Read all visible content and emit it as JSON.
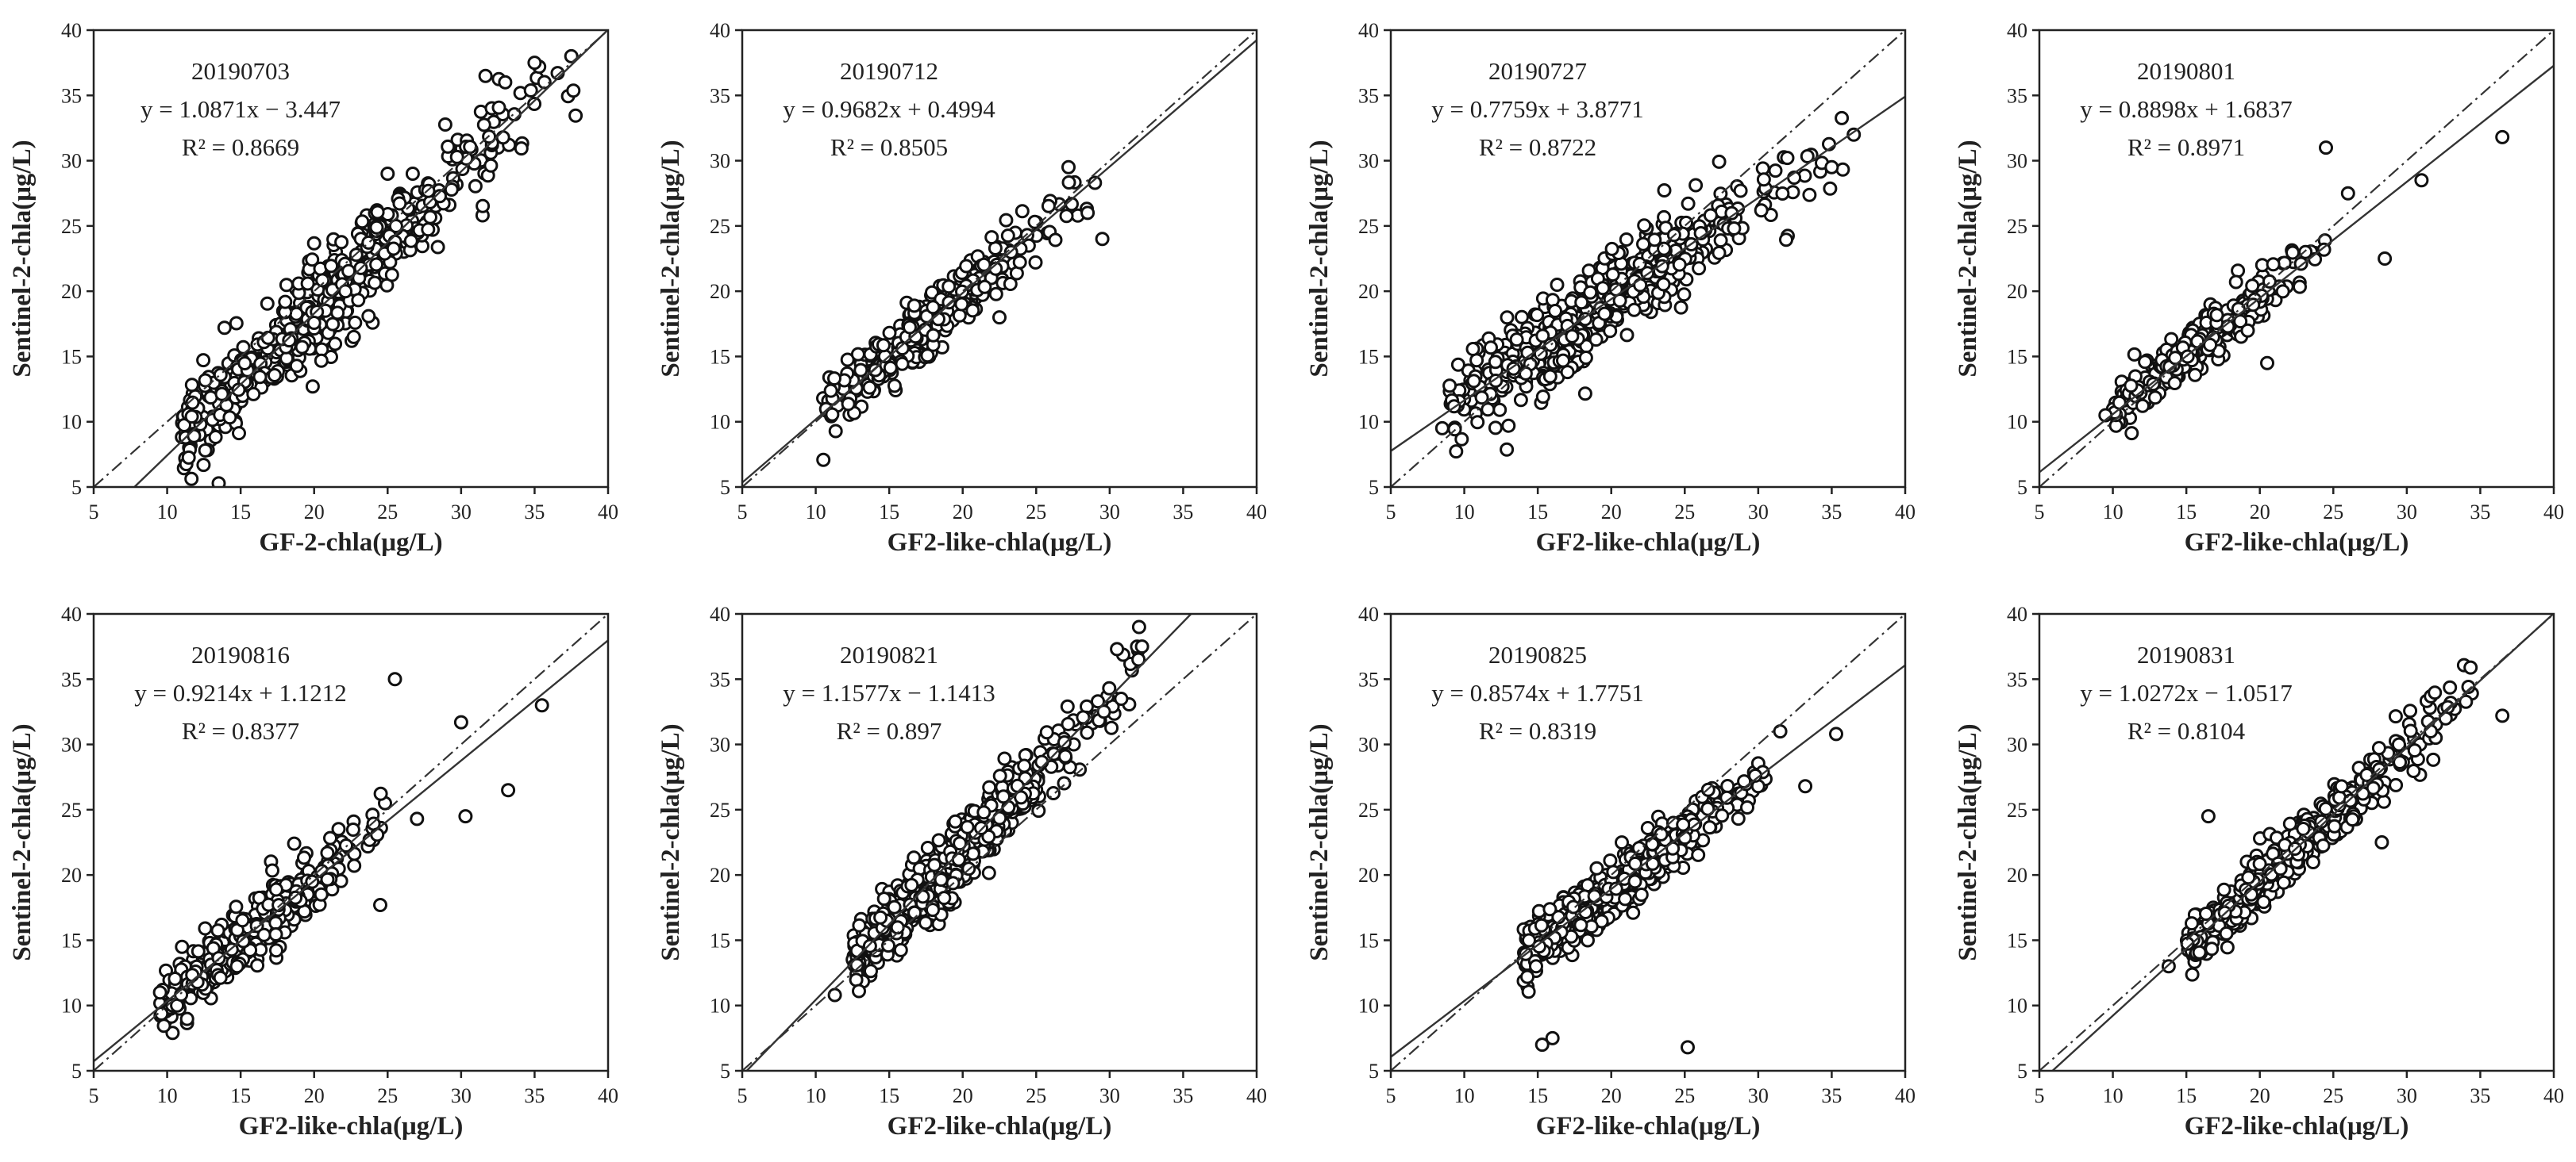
{
  "chart_data": [
    {
      "type": "scatter",
      "date_label": "20190703",
      "equation": "y = 1.0871x − 3.447",
      "r2_label": "R² = 0.8669",
      "xlabel": "GF-2-chla(μg/L)",
      "ylabel": "Sentinel-2-chla(μg/L)",
      "xlim": [
        5,
        40
      ],
      "ylim": [
        5,
        40
      ],
      "xticks": [
        "5",
        "10",
        "15",
        "20",
        "25",
        "30",
        "35",
        "40"
      ],
      "yticks": [
        "5",
        "10",
        "15",
        "20",
        "25",
        "30",
        "35",
        "40"
      ],
      "series": [
        {
          "name": "points",
          "x_range": [
            11,
            38
          ],
          "count": 520,
          "spread": 2.0,
          "outliers": [
            [
              37.5,
              38
            ],
            [
              35,
              37.5
            ],
            [
              33,
              36
            ],
            [
              25,
              29
            ]
          ]
        },
        {
          "name": "fit",
          "slope": 1.0871,
          "intercept": -3.447
        },
        {
          "name": "1:1 line",
          "slope": 1,
          "intercept": 0
        }
      ]
    },
    {
      "type": "scatter",
      "date_label": "20190712",
      "equation": "y = 0.9682x + 0.4994",
      "r2_label": "R² = 0.8505",
      "xlabel": "GF2-like-chla(μg/L)",
      "ylabel": "Sentinel-2-chla(μg/L)",
      "xlim": [
        5,
        40
      ],
      "ylim": [
        5,
        40
      ],
      "xticks": [
        "5",
        "10",
        "15",
        "20",
        "25",
        "30",
        "35",
        "40"
      ],
      "yticks": [
        "5",
        "10",
        "15",
        "20",
        "25",
        "30",
        "35",
        "40"
      ],
      "series": [
        {
          "name": "points",
          "x_range": [
            10.5,
            29
          ],
          "count": 330,
          "spread": 1.2,
          "outliers": [
            [
              29.5,
              24
            ],
            [
              22.5,
              18
            ],
            [
              27.2,
              29.5
            ],
            [
              29,
              28.3
            ],
            [
              28.5,
              26
            ]
          ]
        },
        {
          "name": "fit",
          "slope": 0.9682,
          "intercept": 0.4994
        },
        {
          "name": "1:1 line",
          "slope": 1,
          "intercept": 0
        }
      ]
    },
    {
      "type": "scatter",
      "date_label": "20190727",
      "equation": "y = 0.7759x + 3.8771",
      "r2_label": "R² = 0.8722",
      "xlabel": "GF2-like-chla(μg/L)",
      "ylabel": "Sentinel-2-chla(μg/L)",
      "xlim": [
        5,
        40
      ],
      "ylim": [
        5,
        40
      ],
      "xticks": [
        "5",
        "10",
        "15",
        "20",
        "25",
        "30",
        "35",
        "40"
      ],
      "yticks": [
        "5",
        "10",
        "15",
        "20",
        "25",
        "30",
        "35",
        "40"
      ],
      "series": [
        {
          "name": "points",
          "x_range": [
            9,
            36.5
          ],
          "count": 520,
          "spread": 1.7,
          "outliers": [
            [
              8.5,
              9.5
            ],
            [
              36.5,
              32
            ],
            [
              35,
              29.5
            ]
          ]
        },
        {
          "name": "fit",
          "slope": 0.7759,
          "intercept": 3.8771
        },
        {
          "name": "1:1 line",
          "slope": 1,
          "intercept": 0
        }
      ]
    },
    {
      "type": "scatter",
      "date_label": "20190801",
      "equation": "y = 0.8898x + 1.6837",
      "r2_label": "R² = 0.8971",
      "xlabel": "GF2-like-chla(μg/L)",
      "ylabel": "Sentinel-2-chla(μg/L)",
      "xlim": [
        5,
        40
      ],
      "ylim": [
        5,
        40
      ],
      "xticks": [
        "5",
        "10",
        "15",
        "20",
        "25",
        "30",
        "35",
        "40"
      ],
      "yticks": [
        "5",
        "10",
        "15",
        "20",
        "25",
        "30",
        "35",
        "40"
      ],
      "series": [
        {
          "name": "points",
          "x_range": [
            10,
            25
          ],
          "count": 300,
          "spread": 1.0,
          "outliers": [
            [
              36.5,
              31.8
            ],
            [
              31,
              28.5
            ],
            [
              28.5,
              22.5
            ],
            [
              26,
              27.5
            ],
            [
              24.5,
              31
            ],
            [
              20.5,
              14.5
            ],
            [
              9.5,
              10.5
            ]
          ]
        },
        {
          "name": "fit",
          "slope": 0.8898,
          "intercept": 1.6837
        },
        {
          "name": "1:1 line",
          "slope": 1,
          "intercept": 0
        }
      ]
    },
    {
      "type": "scatter",
      "date_label": "20190816",
      "equation": "y = 0.9214x + 1.1212",
      "r2_label": "R² = 0.8377",
      "xlabel": "GF2-like-chla(μg/L)",
      "ylabel": "Sentinel-2-chla(μg/L)",
      "xlim": [
        5,
        40
      ],
      "ylim": [
        5,
        40
      ],
      "xticks": [
        "5",
        "10",
        "15",
        "20",
        "25",
        "30",
        "35",
        "40"
      ],
      "yticks": [
        "5",
        "10",
        "15",
        "20",
        "25",
        "30",
        "35",
        "40"
      ],
      "series": [
        {
          "name": "points",
          "x_range": [
            9.5,
            26
          ],
          "count": 380,
          "spread": 1.3,
          "outliers": [
            [
              25.5,
              35
            ],
            [
              35.5,
              33
            ],
            [
              30,
              31.7
            ],
            [
              33.2,
              26.5
            ],
            [
              30.3,
              24.5
            ],
            [
              27,
              24.3
            ],
            [
              24.5,
              17.7
            ]
          ]
        },
        {
          "name": "fit",
          "slope": 0.9214,
          "intercept": 1.1212
        },
        {
          "name": "1:1 line",
          "slope": 1,
          "intercept": 0
        }
      ]
    },
    {
      "type": "scatter",
      "date_label": "20190821",
      "equation": "y = 1.1577x − 1.1413",
      "r2_label": "R² = 0.897",
      "xlabel": "GF2-like-chla(μg/L)",
      "ylabel": "Sentinel-2-chla(μg/L)",
      "xlim": [
        5,
        40
      ],
      "ylim": [
        5,
        40
      ],
      "xticks": [
        "5",
        "10",
        "15",
        "20",
        "25",
        "30",
        "35",
        "40"
      ],
      "yticks": [
        "5",
        "10",
        "15",
        "20",
        "25",
        "30",
        "35",
        "40"
      ],
      "series": [
        {
          "name": "points",
          "x_range": [
            12.5,
            32
          ],
          "count": 560,
          "spread": 1.3,
          "outliers": [
            [
              11.3,
              10.8
            ],
            [
              32,
              39
            ],
            [
              32.2,
              37.5
            ],
            [
              30.5,
              37.3
            ]
          ]
        },
        {
          "name": "fit",
          "slope": 1.1577,
          "intercept": -1.1413
        },
        {
          "name": "1:1 line",
          "slope": 1,
          "intercept": 0
        }
      ]
    },
    {
      "type": "scatter",
      "date_label": "20190825",
      "equation": "y = 0.8574x + 1.7751",
      "r2_label": "R² = 0.8319",
      "xlabel": "GF2-like-chla(μg/L)",
      "ylabel": "Sentinel-2-chla(μg/L)",
      "xlim": [
        5,
        40
      ],
      "ylim": [
        5,
        40
      ],
      "xticks": [
        "5",
        "10",
        "15",
        "20",
        "25",
        "30",
        "35",
        "40"
      ],
      "yticks": [
        "5",
        "10",
        "15",
        "20",
        "25",
        "30",
        "35",
        "40"
      ],
      "series": [
        {
          "name": "points",
          "x_range": [
            14,
            30.5
          ],
          "count": 520,
          "spread": 1.1,
          "outliers": [
            [
              15.3,
              7
            ],
            [
              16,
              7.5
            ],
            [
              25.2,
              6.8
            ],
            [
              35.3,
              30.8
            ],
            [
              33.2,
              26.8
            ],
            [
              31.5,
              31
            ]
          ]
        },
        {
          "name": "fit",
          "slope": 0.8574,
          "intercept": 1.7751
        },
        {
          "name": "1:1 line",
          "slope": 1,
          "intercept": 0
        }
      ]
    },
    {
      "type": "scatter",
      "date_label": "20190831",
      "equation": "y = 1.0272x − 1.0517",
      "r2_label": "R² = 0.8104",
      "xlabel": "GF2-like-chla(μg/L)",
      "ylabel": "Sentinel-2-chla(μg/L)",
      "xlim": [
        5,
        40
      ],
      "ylim": [
        5,
        40
      ],
      "xticks": [
        "5",
        "10",
        "15",
        "20",
        "25",
        "30",
        "35",
        "40"
      ],
      "yticks": [
        "5",
        "10",
        "15",
        "20",
        "25",
        "30",
        "35",
        "40"
      ],
      "series": [
        {
          "name": "points",
          "x_range": [
            15,
            34.5
          ],
          "count": 460,
          "spread": 1.1,
          "outliers": [
            [
              13.8,
              13
            ],
            [
              16.5,
              24.5
            ],
            [
              36.5,
              32.2
            ],
            [
              28.3,
              22.5
            ]
          ]
        },
        {
          "name": "fit",
          "slope": 1.0272,
          "intercept": -1.0517
        },
        {
          "name": "1:1 line",
          "slope": 1,
          "intercept": 0
        }
      ]
    }
  ]
}
